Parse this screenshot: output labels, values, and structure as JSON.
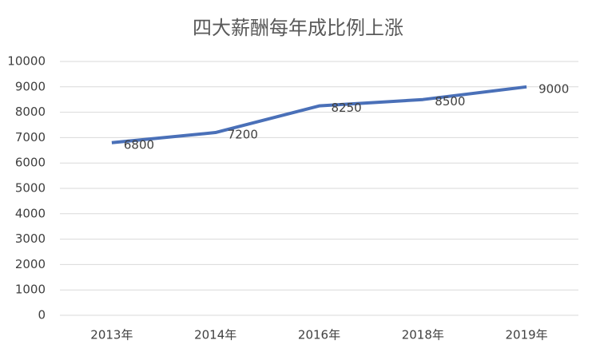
{
  "chart_data": {
    "type": "line",
    "title": "四大薪酬每年成比例上涨",
    "categories": [
      "2013年",
      "2014年",
      "2016年",
      "2018年",
      "2019年"
    ],
    "values": [
      6800,
      7200,
      8250,
      8500,
      9000
    ],
    "color": "#4a70b8",
    "ylim": [
      0,
      10000
    ],
    "yticks": [
      0,
      1000,
      2000,
      3000,
      4000,
      5000,
      6000,
      7000,
      8000,
      9000,
      10000
    ],
    "grid": true
  }
}
